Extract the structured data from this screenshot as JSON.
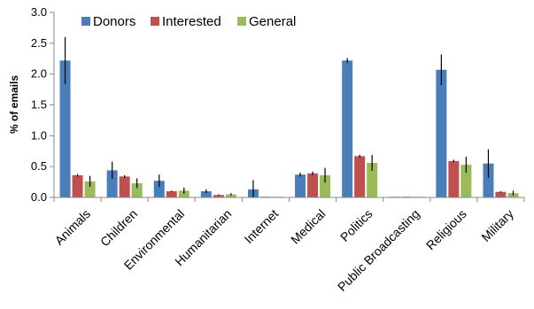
{
  "chart_data": {
    "type": "bar",
    "title": "",
    "xlabel": "",
    "ylabel": "% of emails",
    "ylim": [
      0,
      3.0
    ],
    "yticks": [
      "0.0",
      "0.5",
      "1.0",
      "1.5",
      "2.0",
      "2.5",
      "3.0"
    ],
    "grid": false,
    "legend_position": "top-left",
    "categories": [
      "Animals",
      "Children",
      "Environmental",
      "Humanitarian",
      "Internet",
      "Medical",
      "Politics",
      "Public Broadcasting",
      "Religious",
      "Military"
    ],
    "series": [
      {
        "name": "Donors",
        "color": "#4a7ebb",
        "values": [
          2.22,
          0.44,
          0.27,
          0.1,
          0.13,
          0.37,
          2.22,
          0.0,
          2.07,
          0.55
        ],
        "errors": [
          0.38,
          0.14,
          0.1,
          0.03,
          0.15,
          0.03,
          0.04,
          0.0,
          0.25,
          0.23
        ]
      },
      {
        "name": "Interested",
        "color": "#c0504d",
        "values": [
          0.36,
          0.34,
          0.1,
          0.04,
          0.0,
          0.39,
          0.67,
          0.0,
          0.59,
          0.09
        ],
        "errors": [
          0.02,
          0.02,
          0.01,
          0.01,
          0.0,
          0.03,
          0.02,
          0.0,
          0.02,
          0.01
        ]
      },
      {
        "name": "General",
        "color": "#9bbb59",
        "values": [
          0.26,
          0.23,
          0.11,
          0.05,
          0.0,
          0.36,
          0.56,
          0.0,
          0.53,
          0.07
        ],
        "errors": [
          0.09,
          0.08,
          0.05,
          0.02,
          0.0,
          0.12,
          0.13,
          0.0,
          0.13,
          0.04
        ]
      }
    ]
  }
}
